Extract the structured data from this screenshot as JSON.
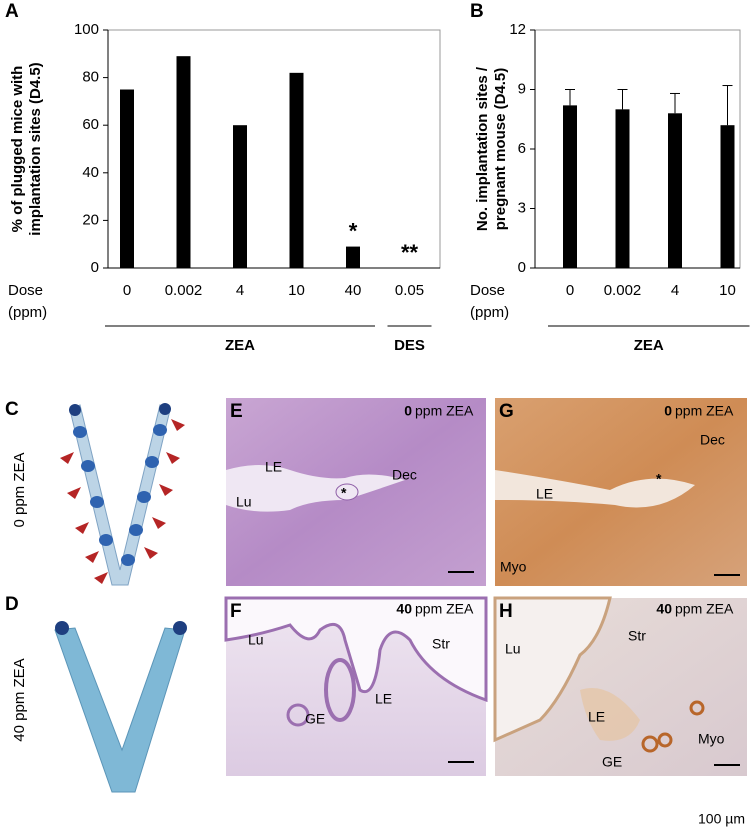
{
  "chart_data": [
    {
      "type": "bar",
      "panel_label": "A",
      "ylabel": [
        "% of plugged mice with",
        "implantation sites (D4.5)"
      ],
      "xlabel": [
        "Dose",
        "(ppm)"
      ],
      "categories": [
        "0",
        "0.002",
        "4",
        "10",
        "40",
        "0.05"
      ],
      "values": [
        75,
        89,
        60,
        82,
        9,
        0
      ],
      "color": "#000000",
      "groups": [
        {
          "label": "ZEA",
          "categories": [
            "0",
            "0.002",
            "4",
            "10",
            "40"
          ]
        },
        {
          "label": "DES",
          "categories": [
            "0.05"
          ]
        }
      ],
      "annotations": [
        {
          "category": "40",
          "text": "*"
        },
        {
          "category": "0.05",
          "text": "**"
        }
      ],
      "ylim": [
        0,
        100
      ],
      "yticks": [
        0,
        20,
        40,
        60,
        80,
        100
      ],
      "grid": false
    },
    {
      "type": "bar",
      "panel_label": "B",
      "ylabel": [
        "No. implantation sites /",
        "pregnant mouse (D4.5)"
      ],
      "xlabel": [
        "Dose",
        "(ppm)"
      ],
      "categories": [
        "0",
        "0.002",
        "4",
        "10"
      ],
      "values": [
        8.2,
        8.0,
        7.8,
        7.2
      ],
      "errors": [
        0.8,
        1.0,
        1.0,
        2.0
      ],
      "color": "#000000",
      "groups": [
        {
          "label": "ZEA",
          "categories": [
            "0",
            "0.002",
            "4",
            "10"
          ]
        }
      ],
      "ylim": [
        0,
        12
      ],
      "yticks": [
        0,
        3,
        6,
        9,
        12
      ],
      "grid": false
    }
  ],
  "panels": [
    {
      "letter": "C",
      "side_label": "0 ppm ZEA"
    },
    {
      "letter": "D",
      "side_label": "40 ppm ZEA"
    },
    {
      "letter": "E",
      "dose": "0",
      "title": "ppm ZEA",
      "labels": [
        "LE",
        "Lu",
        "Dec",
        "*"
      ]
    },
    {
      "letter": "F",
      "dose": "40",
      "title": "ppm ZEA",
      "labels": [
        "Lu",
        "LE",
        "Str",
        "GE"
      ]
    },
    {
      "letter": "G",
      "dose": "0",
      "title": "ppm ZEA",
      "labels": [
        "Dec",
        "LE",
        "*",
        "Myo"
      ]
    },
    {
      "letter": "H",
      "dose": "40",
      "title": "ppm ZEA",
      "labels": [
        "Lu",
        "Str",
        "LE",
        "GE",
        "Myo"
      ]
    }
  ],
  "scale_bar": "100 µm"
}
